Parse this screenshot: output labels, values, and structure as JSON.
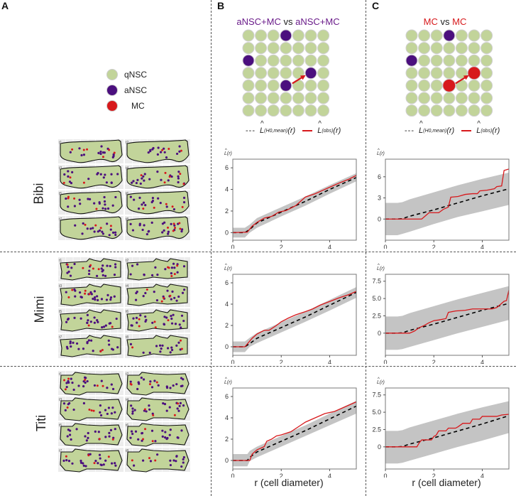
{
  "panels": {
    "A": {
      "letter": "A"
    },
    "B": {
      "letter": "B",
      "title_left": "aNSC+MC",
      "title_vs": " vs ",
      "title_right": "aNSC+MC",
      "title_color": "#6a1b8a"
    },
    "C": {
      "letter": "C",
      "title_left": "MC",
      "title_vs": " vs ",
      "title_right": "MC",
      "title_color": "#d7191c"
    }
  },
  "legend_cells": [
    {
      "label": "qNSC",
      "color": "#c2d49a"
    },
    {
      "label": "aNSC",
      "color": "#4b0f7e"
    },
    {
      "label": "MC",
      "color": "#d7191c"
    }
  ],
  "curve_legend": {
    "mean_label": "L",
    "mean_sub": "(H0,mean)",
    "obs_label": "L",
    "obs_sub": "(obs)",
    "arg": "(r)"
  },
  "rows": [
    {
      "name": "Bibi",
      "tiles": [
        "t1",
        "t2",
        "t3",
        "t4",
        "t5",
        "t6",
        "t7",
        "t8"
      ]
    },
    {
      "name": "Mimi",
      "tiles": [
        "t1",
        "t2",
        "t3",
        "t4",
        "t5",
        "t6",
        "t7",
        "t8"
      ]
    },
    {
      "name": "Titi",
      "tiles": [
        "t1",
        "t2",
        "t3",
        "t4",
        "t5",
        "t6",
        "t7",
        "t8"
      ]
    }
  ],
  "xlabel": "r (cell diameter)",
  "ylabel": "L(r)",
  "colors": {
    "observed": "#d7191c",
    "expected": "#000000",
    "envelope": "#c4c4c4",
    "qnsc": "#c2d49a",
    "ansc": "#4b0f7e",
    "mc": "#d7191c"
  },
  "chart_data": [
    {
      "id": "B-Bibi",
      "type": "line",
      "xlim": [
        0,
        5.1
      ],
      "ylim": [
        -0.7,
        6.8
      ],
      "xticks": [
        0,
        2,
        4
      ],
      "yticks": [
        0,
        2,
        4,
        6
      ],
      "expected": {
        "x": [
          0,
          0.5,
          0.7,
          1,
          2,
          3,
          4,
          5.1
        ],
        "y": [
          0,
          0,
          0.3,
          0.9,
          1.9,
          2.9,
          4.0,
          5.1
        ]
      },
      "observed": {
        "x": [
          0,
          0.6,
          0.8,
          1.0,
          1.3,
          1.6,
          1.9,
          2.2,
          2.6,
          2.8,
          3.0,
          3.4,
          3.7,
          4.0,
          4.4,
          4.8,
          5.1
        ],
        "y": [
          0,
          0.05,
          0.6,
          0.95,
          1.35,
          1.5,
          1.9,
          2.05,
          2.5,
          2.9,
          3.3,
          3.6,
          3.9,
          4.2,
          4.6,
          4.95,
          5.3
        ]
      },
      "envelope_lo": [
        -0.45,
        -0.45,
        0.0,
        0.45,
        1.5,
        2.5,
        3.6,
        4.75
      ],
      "envelope_hi": [
        0.45,
        0.45,
        0.75,
        1.35,
        2.35,
        3.35,
        4.4,
        5.5
      ]
    },
    {
      "id": "C-Bibi",
      "type": "line",
      "xlim": [
        0,
        5.1
      ],
      "ylim": [
        -3,
        8.5
      ],
      "xticks": [
        0,
        2,
        4
      ],
      "yticks": [
        0,
        3,
        6
      ],
      "expected": {
        "x": [
          0,
          0.5,
          0.7,
          1,
          2,
          3,
          4,
          5.1
        ],
        "y": [
          0,
          0,
          0.05,
          0.4,
          1.3,
          2.3,
          3.3,
          4.3
        ]
      },
      "observed": {
        "x": [
          0,
          1.5,
          1.8,
          2.2,
          2.4,
          2.6,
          2.7,
          3.0,
          3.3,
          3.6,
          3.8,
          3.9,
          4.2,
          4.5,
          4.6,
          4.8,
          4.9,
          5.1
        ],
        "y": [
          0,
          0,
          0.9,
          0.9,
          1.4,
          1.7,
          3.1,
          3.2,
          3.5,
          3.6,
          3.6,
          4.0,
          4.1,
          4.3,
          4.6,
          4.7,
          6.9,
          7.1
        ]
      },
      "envelope_lo": [
        -2.3,
        -2.3,
        -2.1,
        -1.8,
        -0.7,
        0.3,
        1.1,
        2.0
      ],
      "envelope_hi": [
        2.3,
        2.3,
        2.4,
        2.8,
        3.8,
        4.8,
        5.7,
        6.6
      ]
    },
    {
      "id": "B-Mimi",
      "type": "line",
      "xlim": [
        0,
        5.1
      ],
      "ylim": [
        -0.8,
        6.8
      ],
      "xticks": [
        0,
        2,
        4
      ],
      "yticks": [
        0,
        2,
        4,
        6
      ],
      "expected": {
        "x": [
          0,
          0.5,
          0.7,
          1,
          2,
          3,
          4,
          5.1
        ],
        "y": [
          0,
          0,
          0.3,
          0.8,
          1.8,
          2.8,
          3.9,
          5.1
        ]
      },
      "observed": {
        "x": [
          0,
          0.5,
          0.8,
          1.0,
          1.3,
          1.5,
          1.8,
          2.0,
          2.3,
          2.6,
          3.0,
          3.3,
          3.6,
          4.0,
          4.4,
          4.8,
          5.1
        ],
        "y": [
          0,
          0,
          0.8,
          1.2,
          1.55,
          1.55,
          2.0,
          2.35,
          2.7,
          3.0,
          3.3,
          3.55,
          3.9,
          4.25,
          4.6,
          4.9,
          5.2
        ]
      },
      "envelope_lo": [
        -0.5,
        -0.5,
        0.0,
        0.35,
        1.35,
        2.35,
        3.4,
        4.6
      ],
      "envelope_hi": [
        0.5,
        0.5,
        0.85,
        1.3,
        2.3,
        3.3,
        4.4,
        5.6
      ]
    },
    {
      "id": "C-Mimi",
      "type": "line",
      "xlim": [
        0,
        5.1
      ],
      "ylim": [
        -3.2,
        8.5
      ],
      "xticks": [
        0,
        2,
        4
      ],
      "yticks": [
        0,
        2.5,
        5.0,
        7.5
      ],
      "ytick_labels": [
        "0",
        "2.5",
        "5.0",
        "7.5"
      ],
      "expected": {
        "x": [
          0,
          0.5,
          0.7,
          1,
          2,
          3,
          4,
          5.1
        ],
        "y": [
          0,
          0,
          0.05,
          0.4,
          1.3,
          2.3,
          3.3,
          4.3
        ]
      },
      "observed": {
        "x": [
          0,
          1.0,
          1.2,
          1.4,
          1.6,
          1.8,
          2.0,
          2.2,
          2.5,
          2.6,
          2.9,
          3.3,
          3.6,
          4.0,
          4.4,
          4.6,
          4.7,
          4.9,
          5.0,
          5.1
        ],
        "y": [
          0,
          0,
          0.3,
          0.8,
          1.1,
          1.5,
          1.8,
          1.9,
          2.1,
          3.0,
          3.2,
          3.3,
          3.5,
          3.5,
          3.5,
          3.7,
          4.0,
          4.6,
          4.7,
          6.2
        ]
      },
      "envelope_lo": [
        -2.4,
        -2.4,
        -2.3,
        -2.0,
        -1.0,
        0.0,
        0.9,
        1.9
      ],
      "envelope_hi": [
        2.4,
        2.4,
        2.5,
        2.9,
        3.9,
        4.9,
        5.8,
        6.8
      ]
    },
    {
      "id": "B-Titi",
      "type": "line",
      "xlim": [
        0,
        5.1
      ],
      "ylim": [
        -0.8,
        6.8
      ],
      "xticks": [
        0,
        2,
        4
      ],
      "yticks": [
        0,
        2,
        4,
        6
      ],
      "expected": {
        "x": [
          0,
          0.6,
          0.7,
          1,
          2,
          3,
          4,
          5.1
        ],
        "y": [
          0,
          0,
          0.3,
          0.8,
          1.8,
          2.8,
          3.9,
          5.1
        ]
      },
      "observed": {
        "x": [
          0,
          0.7,
          0.8,
          1.0,
          1.3,
          1.4,
          1.6,
          1.8,
          2.0,
          2.4,
          2.8,
          3.0,
          3.4,
          3.8,
          4.2,
          4.6,
          5.1
        ],
        "y": [
          0,
          0,
          0.6,
          1.0,
          1.3,
          1.8,
          2.0,
          2.3,
          2.4,
          2.7,
          3.3,
          3.6,
          4.0,
          4.4,
          4.6,
          5.0,
          5.5
        ]
      },
      "envelope_lo": [
        -0.55,
        -0.55,
        -0.05,
        0.3,
        1.3,
        2.3,
        3.3,
        4.4
      ],
      "envelope_hi": [
        0.6,
        0.6,
        0.9,
        1.3,
        2.3,
        3.3,
        4.4,
        5.6
      ]
    },
    {
      "id": "C-Titi",
      "type": "line",
      "xlim": [
        0,
        5.1
      ],
      "ylim": [
        -3.2,
        8.5
      ],
      "xticks": [
        0,
        2,
        4
      ],
      "yticks": [
        0,
        2.5,
        5.0,
        7.5
      ],
      "ytick_labels": [
        "0",
        "2.5",
        "5.0",
        "7.5"
      ],
      "expected": {
        "x": [
          0,
          0.5,
          0.7,
          1,
          2,
          3,
          4,
          5.1
        ],
        "y": [
          0,
          0,
          0.05,
          0.4,
          1.3,
          2.3,
          3.3,
          4.5
        ]
      },
      "observed": {
        "x": [
          0,
          1.3,
          1.4,
          1.5,
          1.9,
          2.0,
          2.1,
          2.2,
          2.5,
          2.6,
          2.9,
          3.0,
          3.2,
          3.5,
          3.6,
          3.9,
          4.0,
          4.6,
          4.8,
          5.1
        ],
        "y": [
          0,
          0,
          0.6,
          1.0,
          1.0,
          1.5,
          1.7,
          2.3,
          2.3,
          2.7,
          2.7,
          2.9,
          3.4,
          3.4,
          4.0,
          4.0,
          4.4,
          4.4,
          4.6,
          4.7
        ]
      },
      "envelope_lo": [
        -2.4,
        -2.4,
        -2.3,
        -2.0,
        -1.0,
        0.0,
        0.9,
        2.0
      ],
      "envelope_hi": [
        2.3,
        2.3,
        2.4,
        2.8,
        3.8,
        4.8,
        5.7,
        6.6
      ]
    }
  ]
}
